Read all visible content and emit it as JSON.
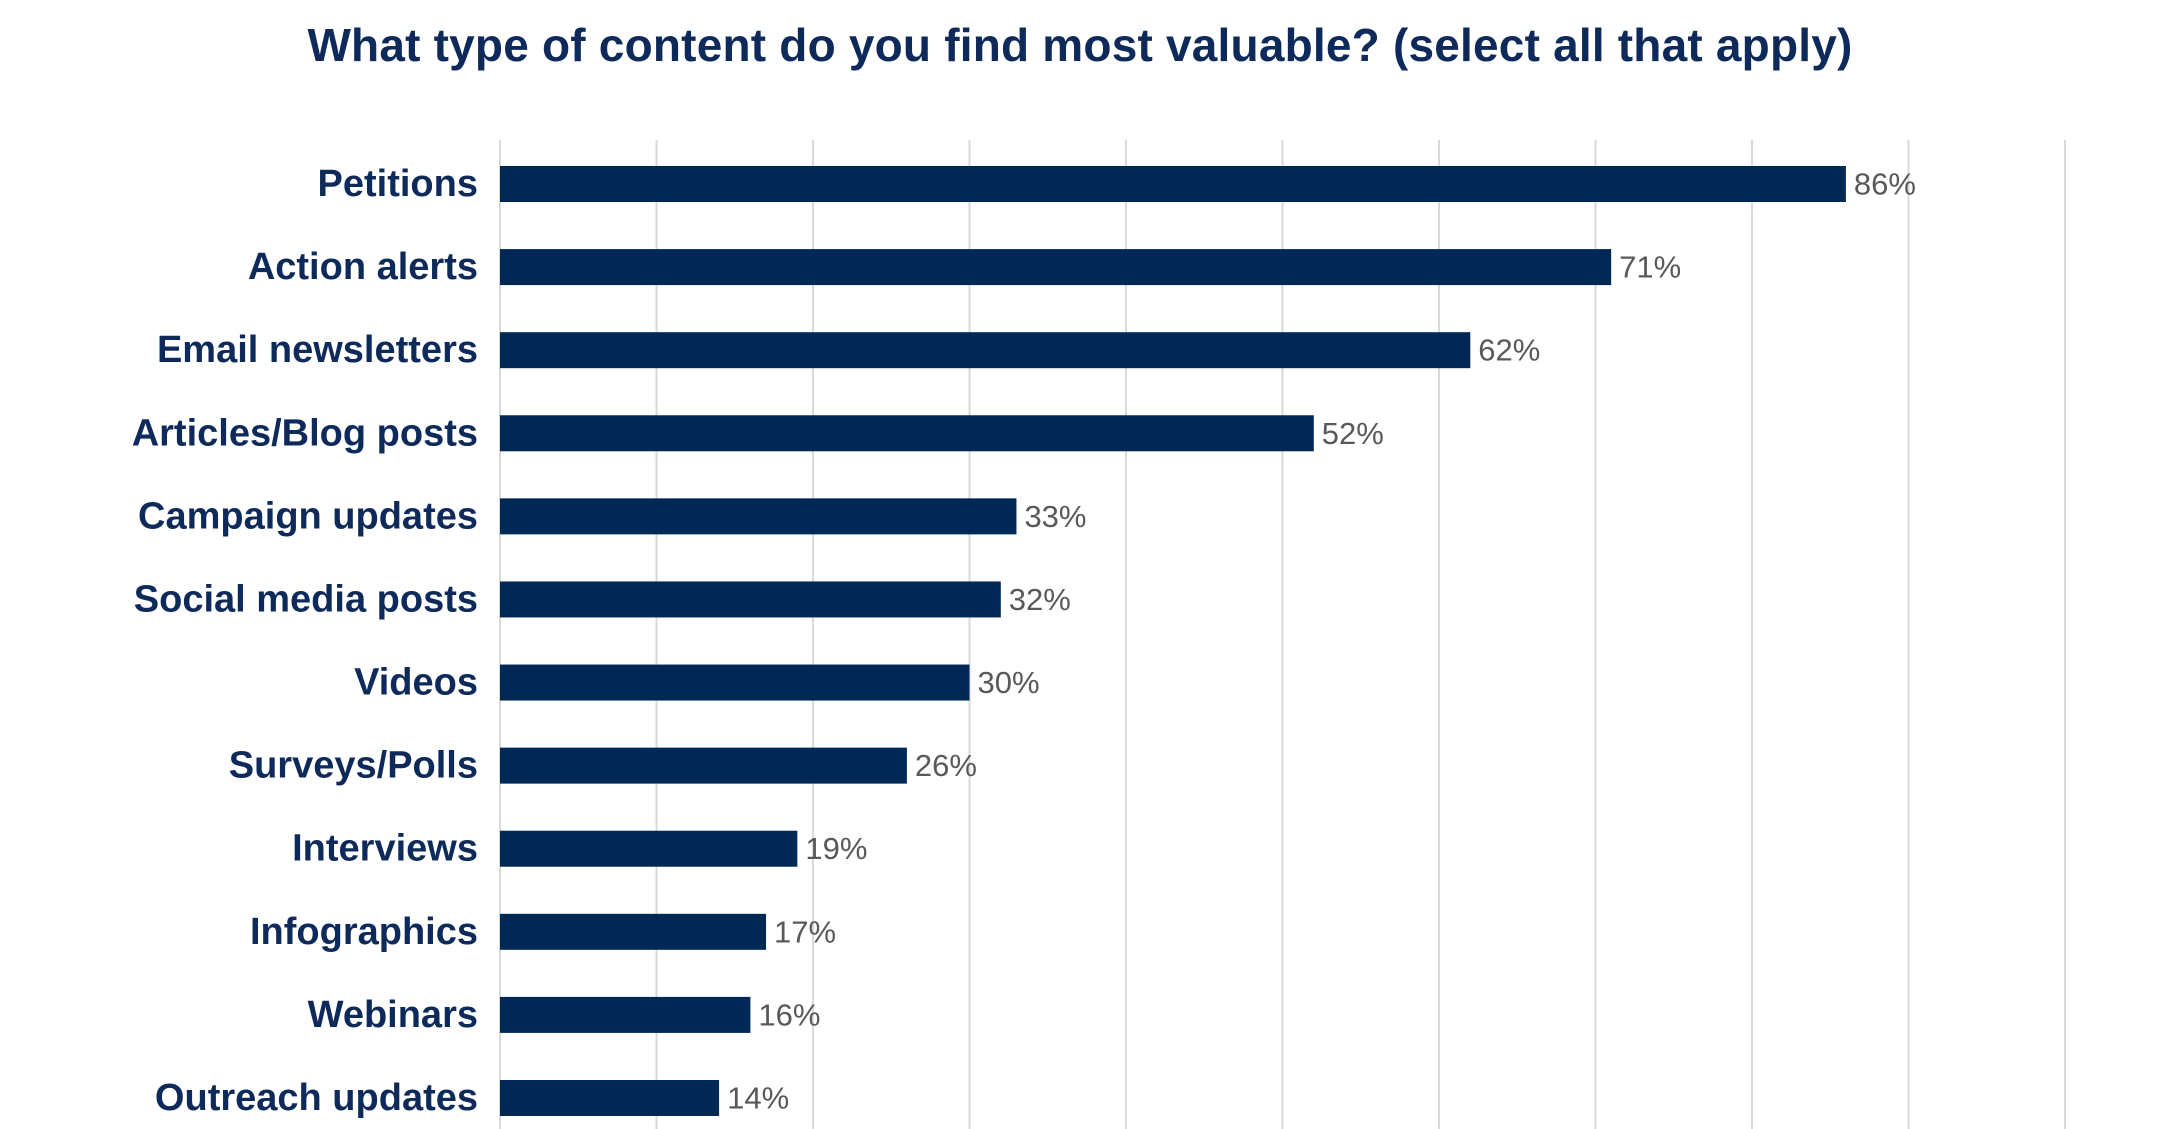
{
  "colors": {
    "bar": "#002855",
    "title": "#0d2a5a",
    "category_label": "#0d2a5a",
    "value_label": "#595959",
    "grid": "#d9d9d9"
  },
  "chart_data": {
    "type": "bar",
    "orientation": "horizontal",
    "title": "What type of content do you find most valuable? (select all that apply)",
    "xlabel": "",
    "ylabel": "",
    "xlim": [
      0,
      100
    ],
    "grid": true,
    "legend": "none",
    "value_format": "percent",
    "categories": [
      "Petitions",
      "Action alerts",
      "Email newsletters",
      "Articles/Blog posts",
      "Campaign updates",
      "Social media posts",
      "Videos",
      "Surveys/Polls",
      "Interviews",
      "Infographics",
      "Webinars",
      "Outreach updates"
    ],
    "values": [
      86,
      71,
      62,
      52,
      33,
      32,
      30,
      26,
      19,
      17,
      16,
      14
    ],
    "value_labels": [
      "86%",
      "71%",
      "62%",
      "52%",
      "33%",
      "32%",
      "30%",
      "26%",
      "19%",
      "17%",
      "16%",
      "14%"
    ]
  }
}
